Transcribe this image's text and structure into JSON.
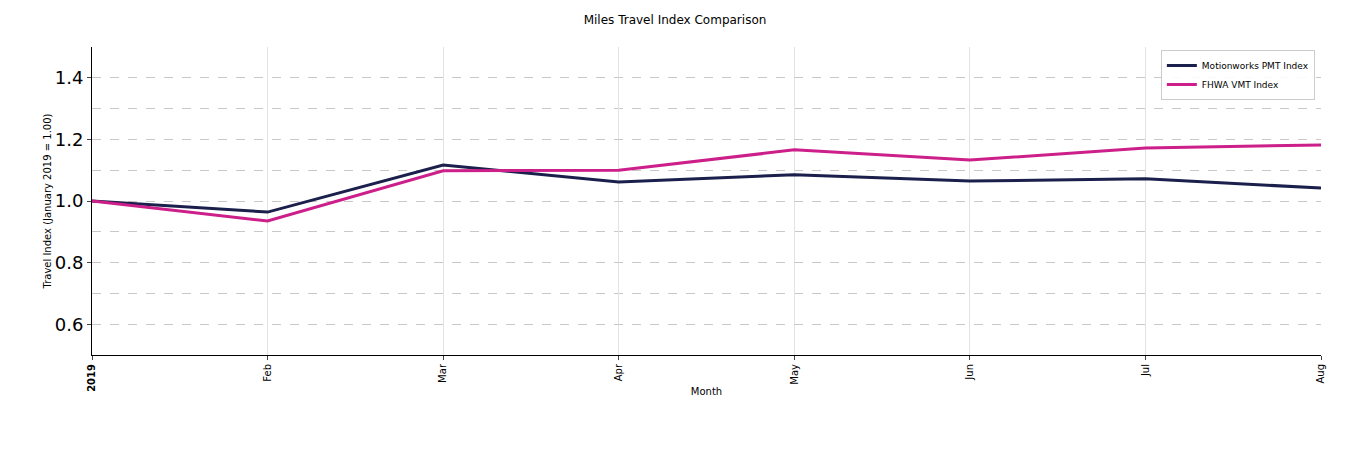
{
  "chart_data": {
    "type": "line",
    "title": "Miles Travel Index Comparison",
    "x_label": "Month",
    "y_label": "Travel Index (January 2019 = 1.00)",
    "categories": [
      "2019",
      "Feb",
      "Mar",
      "Apr",
      "May",
      "Jun",
      "Jul",
      "Aug"
    ],
    "series": [
      {
        "name": "Motionworks PMT Index",
        "color": "#1b1f4b",
        "values": [
          1.0,
          0.964,
          1.117,
          1.062,
          1.085,
          1.065,
          1.072,
          1.042
        ]
      },
      {
        "name": "FHWA VMT Index",
        "color": "#cc1f8a",
        "values": [
          1.0,
          0.935,
          1.098,
          1.1,
          1.166,
          1.133,
          1.172,
          1.182
        ]
      }
    ],
    "ylim": [
      0.5,
      1.5
    ],
    "yticks": [
      0.6,
      0.8,
      {
        "value": 1,
        "label": "1.0"
      },
      1.2,
      1.4
    ],
    "grid": true,
    "legend": "upper right"
  }
}
